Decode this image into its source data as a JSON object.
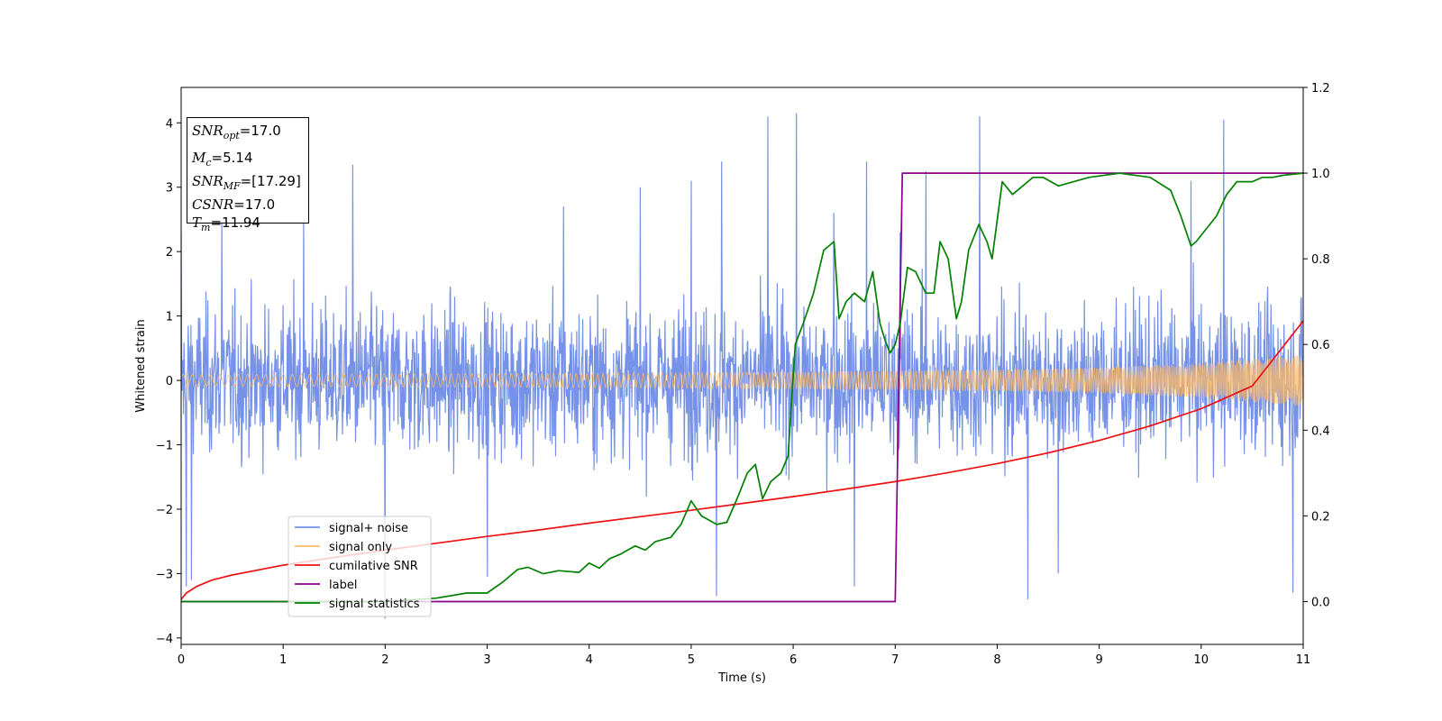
{
  "chart_data": {
    "type": "line",
    "xlabel": "Time (s)",
    "ylabel": "Whitened strain",
    "xlim": [
      0,
      11
    ],
    "ylim": [
      -4.1,
      4.55
    ],
    "y2lim": [
      -0.1,
      1.2
    ],
    "x_ticks": [
      0,
      1,
      2,
      3,
      4,
      5,
      6,
      7,
      8,
      9,
      10,
      11
    ],
    "y_ticks": [
      -4,
      -3,
      -2,
      -1,
      0,
      1,
      2,
      3,
      4
    ],
    "y_tick_labels": [
      "−4",
      "−3",
      "−2",
      "−1",
      "0",
      "1",
      "2",
      "3",
      "4"
    ],
    "y2_ticks": [
      0.0,
      0.2,
      0.4,
      0.6,
      0.8,
      1.0,
      1.2
    ],
    "y2_tick_labels": [
      "0.0",
      "0.2",
      "0.4",
      "0.6",
      "0.8",
      "1.0",
      "1.2"
    ],
    "grid": false,
    "legend_position": "lower-left",
    "info_box": {
      "snr_opt": {
        "name": "SNR",
        "sub": "opt",
        "value": "=17.0"
      },
      "mc": {
        "name": "M",
        "sub": "c",
        "value": "=5.14"
      },
      "snr_mf": {
        "name": "SNR",
        "sub": "MF",
        "value": "=[17.29]"
      },
      "csnr": {
        "name": "CSNR",
        "value": "=17.0"
      },
      "tm": {
        "name": "T",
        "sub": "m",
        "value": "=11.94"
      }
    },
    "series": [
      {
        "name": "signal+ noise",
        "color": "#7591e8",
        "axis": "left",
        "kind": "noise_band",
        "typical_amplitude": 1.3,
        "min_value": -3.7,
        "max_value": 4.15,
        "spikes": [
          [
            0.0,
            2.3
          ],
          [
            0.05,
            -3.2
          ],
          [
            0.1,
            -3.1
          ],
          [
            0.4,
            2.5
          ],
          [
            1.2,
            2.55
          ],
          [
            1.68,
            3.35
          ],
          [
            2.0,
            -3.7
          ],
          [
            3.75,
            2.7
          ],
          [
            5.3,
            3.4
          ],
          [
            5.25,
            -3.35
          ],
          [
            5.75,
            4.1
          ],
          [
            6.03,
            4.15
          ],
          [
            6.72,
            3.4
          ],
          [
            6.6,
            -3.2
          ],
          [
            6.4,
            2.6
          ],
          [
            7.05,
            2.3
          ],
          [
            7.3,
            3.25
          ],
          [
            7.83,
            4.1
          ],
          [
            8.3,
            -3.4
          ],
          [
            10.22,
            4.05
          ],
          [
            10.9,
            -3.3
          ],
          [
            4.5,
            3.0
          ],
          [
            5.0,
            3.1
          ],
          [
            9.9,
            3.1
          ],
          [
            8.6,
            -3.0
          ],
          [
            3.0,
            -3.05
          ]
        ]
      },
      {
        "name": "signal only",
        "color": "#ffbb66",
        "axis": "left",
        "kind": "chirp_envelope",
        "amplitude_at": [
          [
            0,
            0.09
          ],
          [
            2,
            0.1
          ],
          [
            4,
            0.11
          ],
          [
            6,
            0.13
          ],
          [
            8,
            0.17
          ],
          [
            9,
            0.2
          ],
          [
            10,
            0.27
          ],
          [
            11,
            0.4
          ]
        ]
      },
      {
        "name": "cumilative SNR",
        "color": "#ee1111",
        "axis": "right",
        "x": [
          0,
          0.05,
          0.15,
          0.3,
          0.5,
          1,
          1.5,
          2,
          2.5,
          3,
          3.5,
          4,
          4.5,
          5,
          5.5,
          6,
          6.5,
          7,
          7.5,
          8,
          8.5,
          9,
          9.5,
          10,
          10.5,
          11
        ],
        "y": [
          0.005,
          0.02,
          0.035,
          0.05,
          0.062,
          0.085,
          0.103,
          0.12,
          0.136,
          0.152,
          0.167,
          0.183,
          0.198,
          0.213,
          0.229,
          0.245,
          0.262,
          0.28,
          0.3,
          0.322,
          0.347,
          0.376,
          0.41,
          0.45,
          0.503,
          0.655
        ]
      },
      {
        "name": "label",
        "color": "#880088",
        "axis": "right",
        "x": [
          0,
          7.0,
          7.07,
          11
        ],
        "y": [
          0.0,
          0.0,
          1.0,
          1.0
        ]
      },
      {
        "name": "signal statistics",
        "color": "#008000",
        "axis": "right",
        "x": [
          0,
          1,
          2,
          2.5,
          2.8,
          3.0,
          3.15,
          3.3,
          3.4,
          3.55,
          3.7,
          3.9,
          4.0,
          4.1,
          4.2,
          4.3,
          4.45,
          4.55,
          4.65,
          4.8,
          4.9,
          5.0,
          5.1,
          5.25,
          5.35,
          5.45,
          5.55,
          5.63,
          5.7,
          5.78,
          5.88,
          5.95,
          6.02,
          6.1,
          6.2,
          6.3,
          6.4,
          6.45,
          6.52,
          6.6,
          6.7,
          6.78,
          6.85,
          6.9,
          6.95,
          7.0,
          7.05,
          7.12,
          7.2,
          7.3,
          7.38,
          7.44,
          7.52,
          7.6,
          7.65,
          7.72,
          7.82,
          7.9,
          7.95,
          8.05,
          8.15,
          8.25,
          8.35,
          8.45,
          8.6,
          8.75,
          8.9,
          9.2,
          9.5,
          9.7,
          9.8,
          9.9,
          9.95,
          10.05,
          10.15,
          10.25,
          10.35,
          10.5,
          10.6,
          10.7,
          10.8,
          11
        ],
        "y": [
          0.0,
          0.0,
          0.0,
          0.008,
          0.02,
          0.02,
          0.045,
          0.075,
          0.08,
          0.065,
          0.072,
          0.068,
          0.09,
          0.078,
          0.1,
          0.11,
          0.13,
          0.12,
          0.14,
          0.15,
          0.18,
          0.235,
          0.2,
          0.18,
          0.185,
          0.24,
          0.3,
          0.32,
          0.24,
          0.28,
          0.3,
          0.34,
          0.6,
          0.65,
          0.72,
          0.82,
          0.84,
          0.66,
          0.7,
          0.72,
          0.7,
          0.77,
          0.65,
          0.61,
          0.58,
          0.6,
          0.65,
          0.78,
          0.77,
          0.72,
          0.72,
          0.84,
          0.8,
          0.66,
          0.7,
          0.82,
          0.88,
          0.84,
          0.8,
          0.98,
          0.95,
          0.97,
          0.99,
          0.99,
          0.97,
          0.98,
          0.99,
          1.0,
          0.99,
          0.96,
          0.9,
          0.83,
          0.84,
          0.87,
          0.9,
          0.95,
          0.98,
          0.98,
          0.99,
          0.99,
          0.995,
          1.0
        ]
      }
    ]
  }
}
